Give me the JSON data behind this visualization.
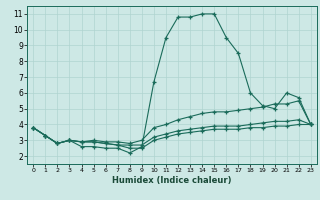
{
  "xlabel": "Humidex (Indice chaleur)",
  "ylabel": "",
  "bg_color": "#cde8e5",
  "grid_color": "#b0d4d0",
  "line_color": "#1a6b5a",
  "xlim": [
    -0.5,
    23.5
  ],
  "ylim": [
    1.5,
    11.5
  ],
  "xticks": [
    0,
    1,
    2,
    3,
    4,
    5,
    6,
    7,
    8,
    9,
    10,
    11,
    12,
    13,
    14,
    15,
    16,
    17,
    18,
    19,
    20,
    21,
    22,
    23
  ],
  "yticks": [
    2,
    3,
    4,
    5,
    6,
    7,
    8,
    9,
    10,
    11
  ],
  "series": [
    [
      3.8,
      3.3,
      2.8,
      3.0,
      2.6,
      2.6,
      2.5,
      2.5,
      2.2,
      2.6,
      6.7,
      9.5,
      10.8,
      10.8,
      11.0,
      11.0,
      9.5,
      8.5,
      6.0,
      5.2,
      5.0,
      6.0,
      5.7,
      4.0
    ],
    [
      3.8,
      3.3,
      2.8,
      3.0,
      2.9,
      3.0,
      2.9,
      2.9,
      2.8,
      3.0,
      3.8,
      4.0,
      4.3,
      4.5,
      4.7,
      4.8,
      4.8,
      4.9,
      5.0,
      5.1,
      5.3,
      5.3,
      5.5,
      4.0
    ],
    [
      3.8,
      3.3,
      2.8,
      3.0,
      2.9,
      2.9,
      2.8,
      2.7,
      2.7,
      2.7,
      3.2,
      3.4,
      3.6,
      3.7,
      3.8,
      3.9,
      3.9,
      3.9,
      4.0,
      4.1,
      4.2,
      4.2,
      4.3,
      4.0
    ],
    [
      3.8,
      3.3,
      2.8,
      3.0,
      2.9,
      2.9,
      2.8,
      2.7,
      2.5,
      2.5,
      3.0,
      3.2,
      3.4,
      3.5,
      3.6,
      3.7,
      3.7,
      3.7,
      3.8,
      3.8,
      3.9,
      3.9,
      4.0,
      4.0
    ]
  ]
}
